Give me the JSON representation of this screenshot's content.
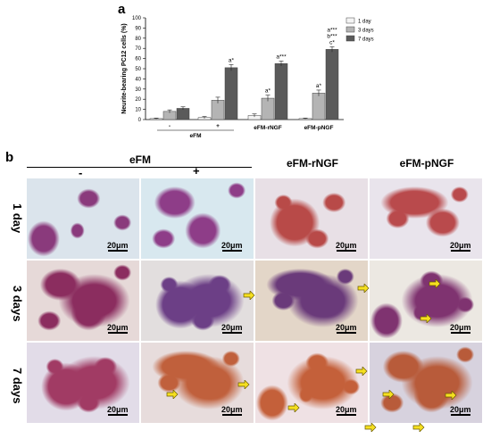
{
  "panel_a_label": "a",
  "panel_b_label": "b",
  "chart_data": {
    "type": "bar",
    "ylabel": "Neurite-bearing PC12 cells (%)",
    "ylim": [
      0,
      100
    ],
    "yticks": [
      "0",
      "10",
      "20",
      "30",
      "40",
      "50",
      "60",
      "70",
      "80",
      "90",
      "100"
    ],
    "groups": [
      {
        "label": "-",
        "values": [
          1,
          8,
          11
        ],
        "errors": [
          0.5,
          1.5,
          1.5
        ],
        "sig": [
          "",
          "",
          ""
        ]
      },
      {
        "label": "+",
        "values": [
          2,
          19,
          51
        ],
        "errors": [
          1,
          3,
          3
        ],
        "sig": [
          "",
          "",
          "a*"
        ]
      },
      {
        "label": "",
        "values": [
          4,
          21,
          55
        ],
        "errors": [
          1.5,
          3,
          2.5
        ],
        "sig": [
          "",
          "a*",
          "a***"
        ]
      },
      {
        "label": "",
        "values": [
          1,
          26,
          69
        ],
        "errors": [
          0.5,
          3,
          2.5
        ],
        "sig": [
          "",
          "a*",
          "a*** b*** c*"
        ]
      }
    ],
    "group_captions": [
      "eFM",
      "eFM-rNGF",
      "eFM-pNGF"
    ],
    "series": [
      {
        "name": "1 day",
        "color": "#f4f4f4"
      },
      {
        "name": "3 days",
        "color": "#b4b4b4"
      },
      {
        "name": "7 days",
        "color": "#5a5a5a"
      }
    ],
    "legend_placement": "top-right",
    "grid": false
  },
  "figure_b": {
    "header_efm": "eFM",
    "header_minus": "-",
    "header_plus": "+",
    "header_rngf": "eFM-rNGF",
    "header_pngf": "eFM-pNGF",
    "rows": [
      "1 day",
      "3 days",
      "7 days"
    ],
    "scale_label": "20μm"
  }
}
